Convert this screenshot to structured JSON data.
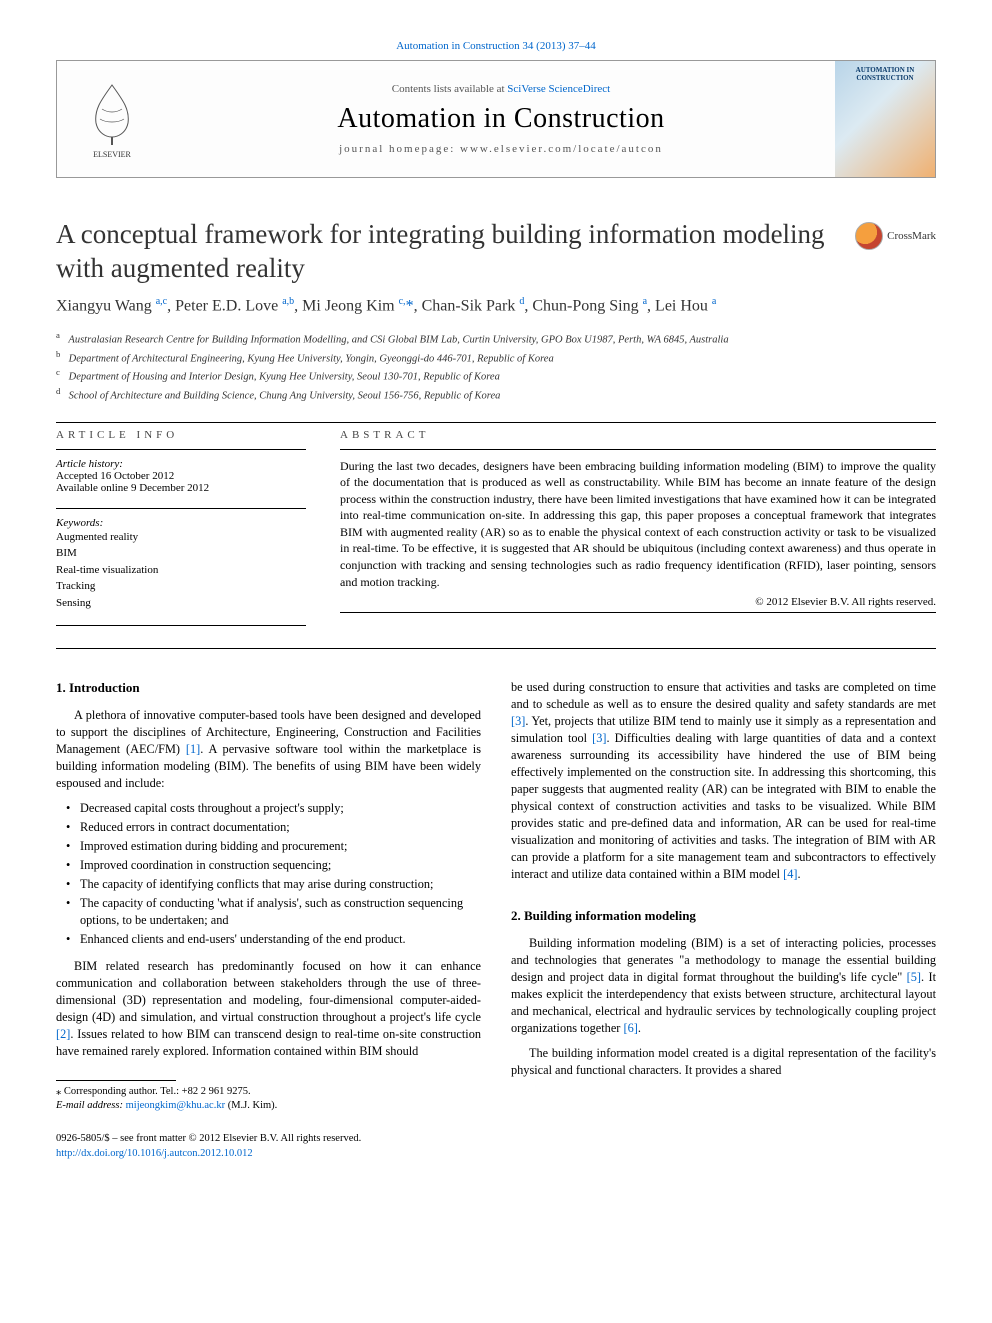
{
  "colors": {
    "link": "#0066cc",
    "text": "#000000",
    "muted": "#555555",
    "rule": "#000000",
    "background": "#ffffff"
  },
  "typography": {
    "body_family": "Times New Roman",
    "title_fontsize_pt": 20,
    "journal_fontsize_pt": 21,
    "body_fontsize_pt": 9.2,
    "small_fontsize_pt": 8
  },
  "header": {
    "top_link_prefix": "",
    "top_link_citation": "Automation in Construction 34 (2013) 37–44",
    "contents_prefix": "Contents lists available at ",
    "contents_link": "SciVerse ScienceDirect",
    "journal_name": "Automation in Construction",
    "homepage_label": "journal homepage: www.elsevier.com/locate/autcon",
    "cover_text": "AUTOMATION IN CONSTRUCTION",
    "publisher_logo_label": "ELSEVIER"
  },
  "crossmark": {
    "label": "CrossMark"
  },
  "paper": {
    "title": "A conceptual framework for integrating building information modeling with augmented reality",
    "authors_html": "Xiangyu Wang <sup><a>a,c</a></sup>, Peter E.D. Love <sup><a>a,b</a></sup>, Mi Jeong Kim <sup><a>c,</a></sup><a>*</a>, Chan-Sik Park <sup><a>d</a></sup>, Chun-Pong Sing <sup><a>a</a></sup>, Lei Hou <sup><a>a</a></sup>",
    "affiliations": [
      {
        "key": "a",
        "text": "Australasian Research Centre for Building Information Modelling, and CSi Global BIM Lab, Curtin University, GPO Box U1987, Perth, WA 6845, Australia"
      },
      {
        "key": "b",
        "text": "Department of Architectural Engineering, Kyung Hee University, Yongin, Gyeonggi-do 446-701, Republic of Korea"
      },
      {
        "key": "c",
        "text": "Department of Housing and Interior Design, Kyung Hee University, Seoul 130-701, Republic of Korea"
      },
      {
        "key": "d",
        "text": "School of Architecture and Building Science, Chung Ang University, Seoul 156-756, Republic of Korea"
      }
    ]
  },
  "article_info": {
    "header": "ARTICLE INFO",
    "history_label": "Article history:",
    "accepted": "Accepted 16 October 2012",
    "online": "Available online 9 December 2012",
    "keywords_label": "Keywords:",
    "keywords": [
      "Augmented reality",
      "BIM",
      "Real-time visualization",
      "Tracking",
      "Sensing"
    ]
  },
  "abstract": {
    "header": "ABSTRACT",
    "text": "During the last two decades, designers have been embracing building information modeling (BIM) to improve the quality of the documentation that is produced as well as constructability. While BIM has become an innate feature of the design process within the construction industry, there have been limited investigations that have examined how it can be integrated into real-time communication on-site. In addressing this gap, this paper proposes a conceptual framework that integrates BIM with augmented reality (AR) so as to enable the physical context of each construction activity or task to be visualized in real-time. To be effective, it is suggested that AR should be ubiquitous (including context awareness) and thus operate in conjunction with tracking and sensing technologies such as radio frequency identification (RFID), laser pointing, sensors and motion tracking.",
    "copyright": "© 2012 Elsevier B.V. All rights reserved."
  },
  "body": {
    "sec1_title": "1. Introduction",
    "sec1_p1": "A plethora of innovative computer-based tools have been designed and developed to support the disciplines of Architecture, Engineering, Construction and Facilities Management (AEC/FM) ",
    "sec1_p1_ref": "[1]",
    "sec1_p1b": ". A pervasive software tool within the marketplace is building information modeling (BIM). The benefits of using BIM have been widely espoused and include:",
    "bullets": [
      "Decreased capital costs throughout a project's supply;",
      "Reduced errors in contract documentation;",
      "Improved estimation during bidding and procurement;",
      "Improved coordination in construction sequencing;",
      "The capacity of identifying conflicts that may arise during construction;",
      "The capacity of conducting 'what if analysis', such as construction sequencing options, to be undertaken; and",
      "Enhanced clients and end-users' understanding of the end product."
    ],
    "sec1_p2a": "BIM related research has predominantly focused on how it can enhance communication and collaboration between stakeholders through the use of three-dimensional (3D) representation and modeling, four-dimensional computer-aided-design (4D) and simulation, and virtual construction throughout a project's life cycle ",
    "sec1_p2_ref": "[2]",
    "sec1_p2b": ". Issues related to how BIM can transcend design to real-time on-site construction have remained rarely explored. Information contained within BIM should",
    "col2_p1a": "be used during construction to ensure that activities and tasks are completed on time and to schedule as well as to ensure the desired quality and safety standards are met ",
    "col2_p1_ref1": "[3]",
    "col2_p1b": ". Yet, projects that utilize BIM tend to mainly use it simply as a representation and simulation tool ",
    "col2_p1_ref2": "[3]",
    "col2_p1c": ". Difficulties dealing with large quantities of data and a context awareness surrounding its accessibility have hindered the use of BIM being effectively implemented on the construction site. In addressing this shortcoming, this paper suggests that augmented reality (AR) can be integrated with BIM to enable the physical context of construction activities and tasks to be visualized. While BIM provides static and pre-defined data and information, AR can be used for real-time visualization and monitoring of activities and tasks. The integration of BIM with AR can provide a platform for a site management team and subcontractors to effectively interact and utilize data contained within a BIM model ",
    "col2_p1_ref3": "[4]",
    "col2_p1d": ".",
    "sec2_title": "2. Building information modeling",
    "sec2_p1a": "Building information modeling (BIM) is a set of interacting policies, processes and technologies that generates \"a methodology to manage the essential building design and project data in digital format throughout the building's life cycle\" ",
    "sec2_p1_ref1": "[5]",
    "sec2_p1b": ". It makes explicit the interdependency that exists between structure, architectural layout and mechanical, electrical and hydraulic services by technologically coupling project organizations together ",
    "sec2_p1_ref2": "[6]",
    "sec2_p1c": ".",
    "sec2_p2": "The building information model created is a digital representation of the facility's physical and functional characters. It provides a shared"
  },
  "footnotes": {
    "corr": "⁎ Corresponding author. Tel.: +82 2 961 9275.",
    "email_label": "E-mail address: ",
    "email": "mijeongkim@khu.ac.kr",
    "email_who": " (M.J. Kim)."
  },
  "pubinfo": {
    "line1": "0926-5805/$ – see front matter © 2012 Elsevier B.V. All rights reserved.",
    "doi": "http://dx.doi.org/10.1016/j.autcon.2012.10.012"
  }
}
